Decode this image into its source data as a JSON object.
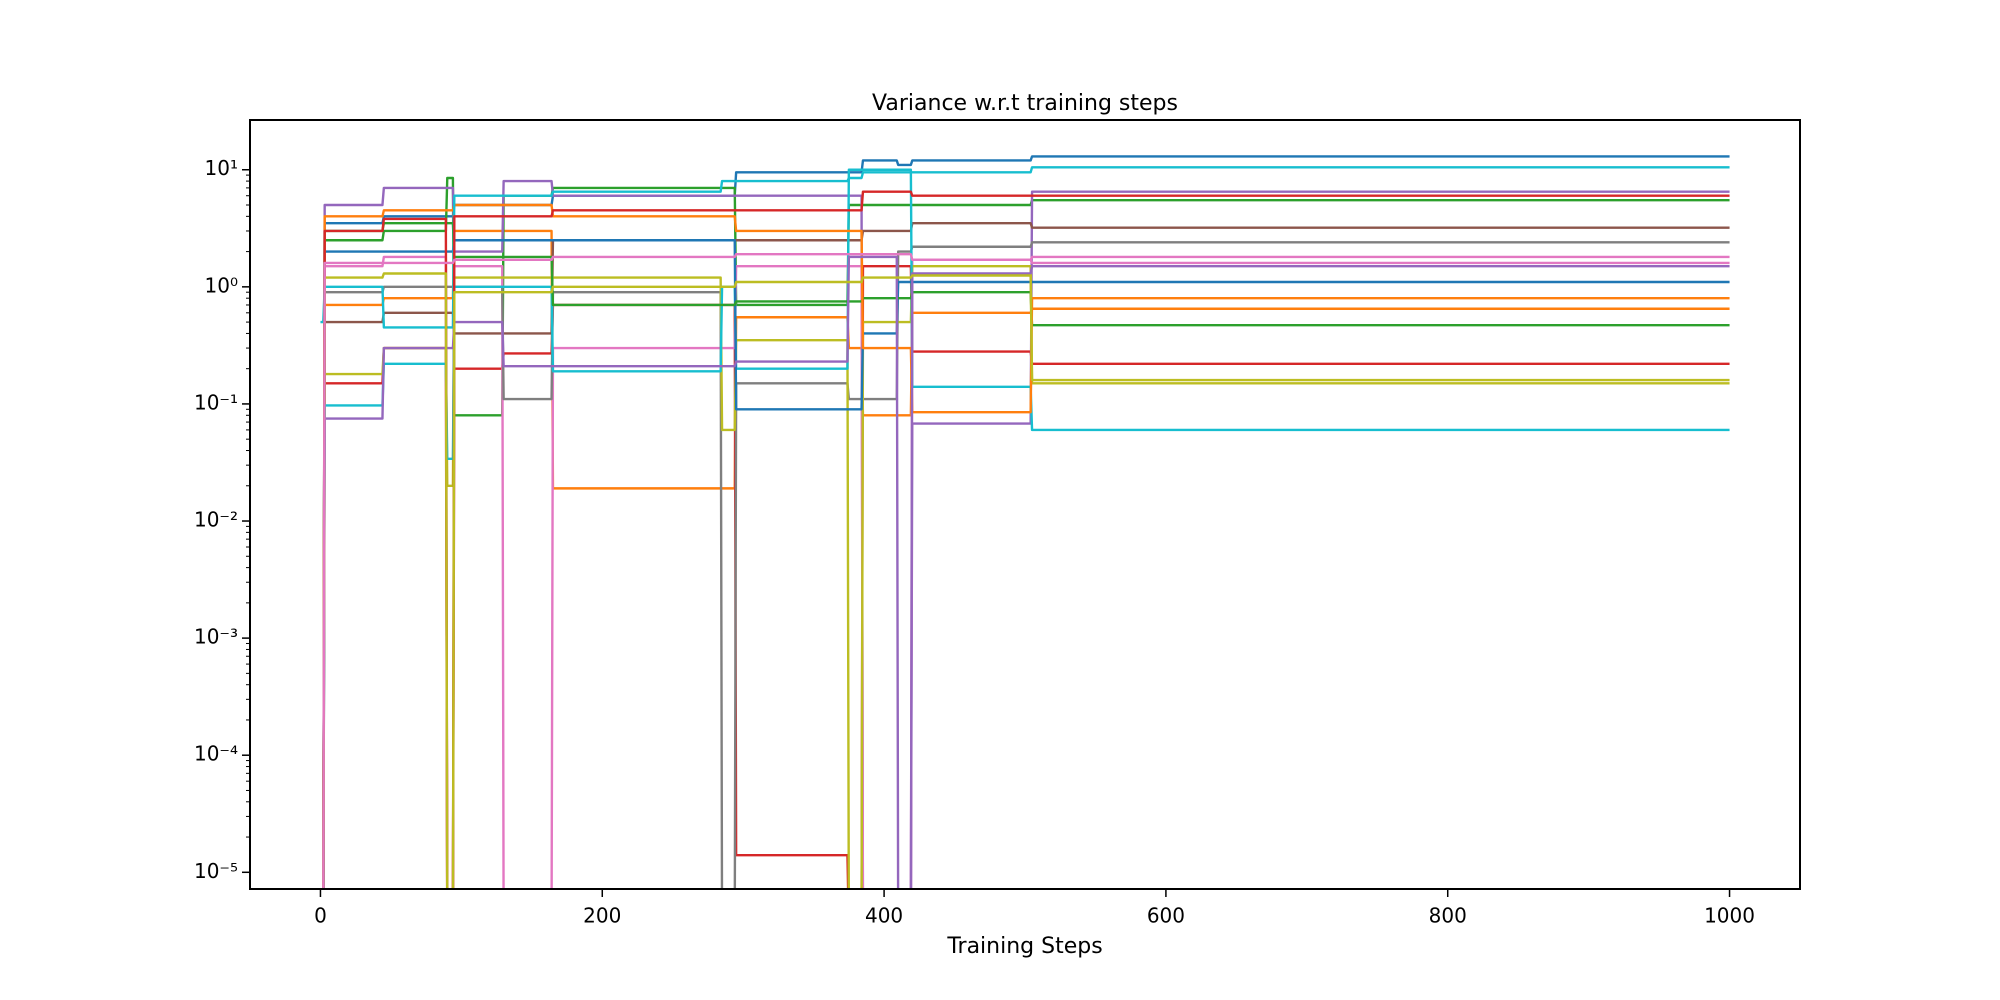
{
  "chart_data": {
    "type": "line",
    "title": "Variance w.r.t training steps",
    "x_label": "Training Steps",
    "y_scale": "log",
    "xlim": [
      -50,
      1050
    ],
    "xticks": [
      0,
      200,
      400,
      600,
      800,
      1000
    ],
    "ylim": [
      7.2e-06,
      26.6
    ],
    "yticks": [
      {
        "value": 1e-05,
        "label": "10⁻⁵"
      },
      {
        "value": 0.0001,
        "label": "10⁻⁴"
      },
      {
        "value": 0.001,
        "label": "10⁻³"
      },
      {
        "value": 0.01,
        "label": "10⁻²"
      },
      {
        "value": 0.1,
        "label": "10⁻¹"
      },
      {
        "value": 1,
        "label": "10⁰"
      },
      {
        "value": 10,
        "label": "10¹"
      }
    ],
    "x": [
      0,
      2,
      3,
      39,
      40,
      44,
      45,
      89,
      90,
      94,
      95,
      129,
      130,
      164,
      165,
      284,
      285,
      294,
      295,
      374,
      375,
      384,
      385,
      409,
      410,
      419,
      420,
      504,
      505,
      1000
    ],
    "series": [
      {
        "color": "#1f77b4",
        "values": [
          0,
          0,
          3.5,
          3.5,
          3.5,
          3.5,
          4,
          4,
          4,
          4,
          5,
          5,
          5,
          5,
          6,
          6,
          6,
          6,
          9.5,
          9.5,
          9.5,
          9.5,
          12,
          12,
          11,
          11,
          12,
          12,
          13,
          13
        ]
      },
      {
        "color": "#ff7f0e",
        "values": [
          0,
          0,
          0.7,
          0.7,
          0.7,
          0.7,
          0.8,
          0.8,
          0.8,
          0.8,
          3,
          3,
          3,
          3,
          0.019,
          0.019,
          0.019,
          0.019,
          0.55,
          0.55,
          0.3,
          0.3,
          0.08,
          0.08,
          0.08,
          0.08,
          0.6,
          0.6,
          0.65,
          0.65
        ]
      },
      {
        "color": "#2ca02c",
        "values": [
          0,
          0,
          2.5,
          2.5,
          2.5,
          2.5,
          3,
          3,
          8.5,
          8.5,
          0.08,
          0.08,
          6,
          6,
          7,
          7,
          7,
          7,
          0.7,
          0.7,
          5,
          5,
          5,
          5,
          5,
          5,
          5,
          5,
          5.5,
          5.5
        ]
      },
      {
        "color": "#d62728",
        "values": [
          0,
          0,
          0.15,
          0.15,
          0.15,
          0.15,
          0.3,
          0.3,
          0,
          0,
          0.2,
          0.2,
          0.27,
          0.27,
          0.7,
          0.7,
          0.7,
          0.7,
          1.4e-05,
          1.4e-05,
          0,
          0,
          1.5,
          1.5,
          1.5,
          1.5,
          0.28,
          0.28,
          0.22,
          0.22
        ]
      },
      {
        "color": "#9467bd",
        "values": [
          0,
          0,
          5,
          5,
          5,
          5,
          7,
          7,
          7,
          7,
          2,
          2,
          8,
          8,
          6,
          6,
          6,
          6,
          6,
          6,
          6,
          6,
          0,
          0,
          0,
          0,
          0.068,
          0.068,
          6.5,
          6.5
        ]
      },
      {
        "color": "#8c564b",
        "values": [
          0,
          0,
          0.5,
          0.5,
          0.5,
          0.5,
          0.6,
          0.6,
          0.6,
          0.6,
          0.4,
          0.4,
          0.4,
          0.4,
          2.5,
          2.5,
          2.5,
          2.5,
          2.5,
          2.5,
          2.5,
          2.5,
          3,
          3,
          3,
          3,
          3.5,
          3.5,
          3.2,
          3.2
        ]
      },
      {
        "color": "#e377c2",
        "values": [
          0,
          0,
          1.5,
          1.5,
          1.5,
          1.5,
          1.8,
          1.8,
          0,
          0,
          1.5,
          1.5,
          0,
          0,
          0.3,
          0.3,
          0.3,
          0.3,
          1.5,
          1.5,
          1.5,
          1.5,
          0,
          0,
          0,
          0,
          1.7,
          1.7,
          1.8,
          1.8
        ]
      },
      {
        "color": "#7f7f7f",
        "values": [
          0,
          0,
          0.9,
          0.9,
          0.9,
          0.9,
          1,
          1,
          1,
          1,
          1,
          1,
          0.11,
          0.11,
          0.9,
          0.9,
          0,
          0,
          0.15,
          0.15,
          0.11,
          0.11,
          0.11,
          0.11,
          2,
          2,
          2.2,
          2.2,
          2.4,
          2.4
        ]
      },
      {
        "color": "#bcbd22",
        "values": [
          0,
          0,
          0.18,
          0.18,
          0.18,
          0.18,
          0.3,
          0.3,
          0.02,
          0.02,
          1.2,
          1.2,
          1.2,
          1.2,
          1.2,
          1.2,
          0.06,
          0.06,
          0.35,
          0.35,
          0,
          0,
          0.5,
          0.5,
          0.5,
          0.5,
          1.5,
          1.5,
          0.15,
          0.15
        ]
      },
      {
        "color": "#17becf",
        "values": [
          0,
          0,
          0.097,
          0.097,
          0.097,
          0.097,
          0.22,
          0.22,
          0.034,
          0.034,
          1,
          1,
          1,
          1,
          0.19,
          0.19,
          1,
          1,
          0.2,
          0.2,
          10,
          10,
          10,
          10,
          10,
          10,
          0.14,
          0.14,
          0.06,
          0.06
        ]
      },
      {
        "color": "#1f77b4",
        "values": [
          0,
          0,
          2,
          2,
          2,
          2,
          2,
          2,
          2,
          2,
          2.5,
          2.5,
          2.5,
          2.5,
          2.5,
          2.5,
          2.5,
          2.5,
          0.09,
          0.09,
          0.09,
          0.09,
          0.4,
          0.4,
          1.1,
          1.1,
          1.1,
          1.1,
          1.1,
          1.1
        ]
      },
      {
        "color": "#2ca02c",
        "values": [
          0,
          0,
          3,
          3,
          3,
          3,
          3.5,
          3.5,
          3.5,
          3.5,
          1.8,
          1.8,
          1.8,
          1.8,
          0.7,
          0.7,
          0.7,
          0.7,
          0.75,
          0.75,
          0.75,
          0.75,
          0.8,
          0.8,
          0.8,
          0.8,
          0.9,
          0.9,
          0.47,
          0.47
        ]
      },
      {
        "color": "#ff7f0e",
        "values": [
          0,
          0,
          4,
          4,
          4,
          4,
          4.5,
          4.5,
          4.5,
          4.5,
          5,
          5,
          5,
          5,
          4,
          4,
          4,
          4,
          3,
          3,
          3,
          3,
          0.3,
          0.3,
          0.3,
          0.3,
          0.085,
          0.085,
          0.8,
          0.8
        ]
      },
      {
        "color": "#17becf",
        "values": [
          0.5,
          0.5,
          1,
          1,
          1,
          1,
          0.45,
          0.45,
          0.45,
          0.45,
          6,
          6,
          6,
          6,
          6.5,
          6.5,
          8,
          8,
          8,
          8,
          8.5,
          8.5,
          9.5,
          9.5,
          9.5,
          9.5,
          9.5,
          9.5,
          10.5,
          10.5
        ]
      },
      {
        "color": "#d62728",
        "values": [
          0,
          0,
          3,
          3,
          3,
          3,
          3.8,
          3.8,
          0,
          0,
          4,
          4,
          4,
          4,
          4.5,
          4.5,
          4.5,
          4.5,
          4.5,
          4.5,
          4.5,
          4.5,
          6.5,
          6.5,
          6.5,
          6.5,
          6,
          6,
          6,
          6
        ]
      },
      {
        "color": "#9467bd",
        "values": [
          0,
          0,
          0.075,
          0.075,
          0.075,
          0.075,
          0.3,
          0.3,
          0.3,
          0.3,
          0.5,
          0.5,
          0.21,
          0.21,
          0.21,
          0.21,
          0.21,
          0.21,
          0.23,
          0.23,
          1.8,
          1.8,
          1.8,
          1.8,
          0,
          0,
          1.3,
          1.3,
          1.5,
          1.5
        ]
      },
      {
        "color": "#bcbd22",
        "values": [
          0,
          0,
          1.2,
          1.2,
          1.2,
          1.2,
          1.3,
          1.3,
          0,
          0,
          0.9,
          0.9,
          0.9,
          0.9,
          1,
          1,
          1,
          1,
          1.1,
          1.1,
          1.1,
          1.1,
          1.2,
          1.2,
          1.2,
          1.2,
          1.25,
          1.25,
          0.16,
          0.16
        ]
      },
      {
        "color": "#e377c2",
        "values": [
          0,
          0,
          1.6,
          1.6,
          1.6,
          1.6,
          1.6,
          1.6,
          1.6,
          1.6,
          1.7,
          1.7,
          1.7,
          1.7,
          1.8,
          1.8,
          1.8,
          1.8,
          1.9,
          1.9,
          1.9,
          1.9,
          1.9,
          1.9,
          1.9,
          1.9,
          1.7,
          1.7,
          1.6,
          1.6
        ]
      }
    ]
  }
}
